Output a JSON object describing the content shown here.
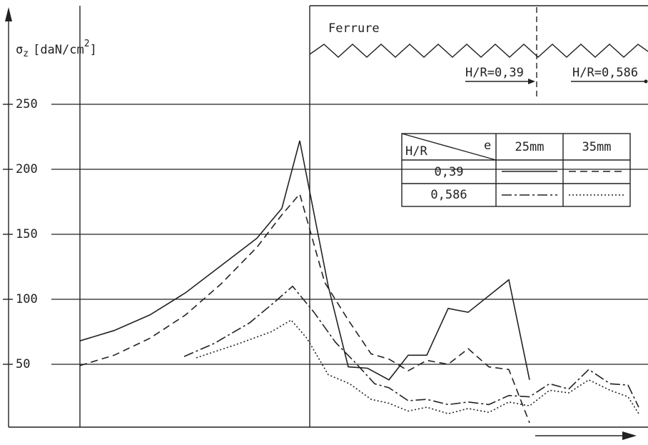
{
  "chart_data": {
    "type": "line",
    "y_label": {
      "symbol": "σ",
      "subscript": "z",
      "unit": "[daN/cm",
      "superscript": "2",
      "close": "]"
    },
    "ylim": [
      0,
      322
    ],
    "yticks": [
      50,
      100,
      150,
      200,
      250
    ],
    "grid": true,
    "xlim": [
      0,
      896
    ],
    "annotations": {
      "ferrule": "Ferrure",
      "left_ratio": "H/R=0,39",
      "right_ratio": "H/R=0,586"
    },
    "legend": {
      "row_header": "H/R",
      "col_header": "e",
      "columns": [
        "25mm",
        "35mm"
      ],
      "rows": [
        "0,39",
        "0,586"
      ]
    },
    "series": [
      {
        "style": "solid",
        "color": "#222222",
        "x": [
          100,
          148,
          198,
          248,
          298,
          348,
          383,
          408,
          448,
          476,
          503,
          533,
          560,
          586,
          616,
          644,
          701,
          730
        ],
        "values": [
          68,
          76,
          88,
          105,
          126,
          147,
          170,
          222,
          110,
          48,
          47,
          38,
          57,
          57,
          93,
          90,
          115,
          38
        ]
      },
      {
        "style": "dashed",
        "color": "#222222",
        "x": [
          100,
          148,
          198,
          248,
          298,
          348,
          383,
          408,
          443,
          476,
          508,
          533,
          560,
          586,
          616,
          644,
          673,
          701,
          730
        ],
        "values": [
          49,
          57,
          70,
          88,
          112,
          140,
          165,
          181,
          113,
          84,
          58,
          54,
          45,
          53,
          50,
          62,
          48,
          46,
          5
        ]
      },
      {
        "style": "dashdot",
        "color": "#222222",
        "x": [
          246,
          288,
          338,
          373,
          398,
          428,
          458,
          488,
          513,
          533,
          560,
          586,
          616,
          644,
          673,
          701,
          730,
          758,
          785,
          813,
          843,
          868,
          883
        ],
        "values": [
          56,
          66,
          82,
          98,
          110,
          90,
          67,
          50,
          35,
          32,
          22,
          23,
          19,
          21,
          19,
          26,
          25,
          35,
          31,
          46,
          35,
          34,
          17
        ]
      },
      {
        "style": "dotted",
        "color": "#222222",
        "x": [
          263,
          318,
          368,
          396,
          418,
          448,
          478,
          508,
          533,
          560,
          586,
          616,
          644,
          673,
          701,
          730,
          758,
          785,
          813,
          843,
          868,
          883
        ],
        "values": [
          55,
          65,
          75,
          84,
          70,
          42,
          35,
          23,
          20,
          14,
          17,
          12,
          16,
          13,
          21,
          18,
          30,
          28,
          38,
          30,
          25,
          12
        ]
      }
    ]
  }
}
